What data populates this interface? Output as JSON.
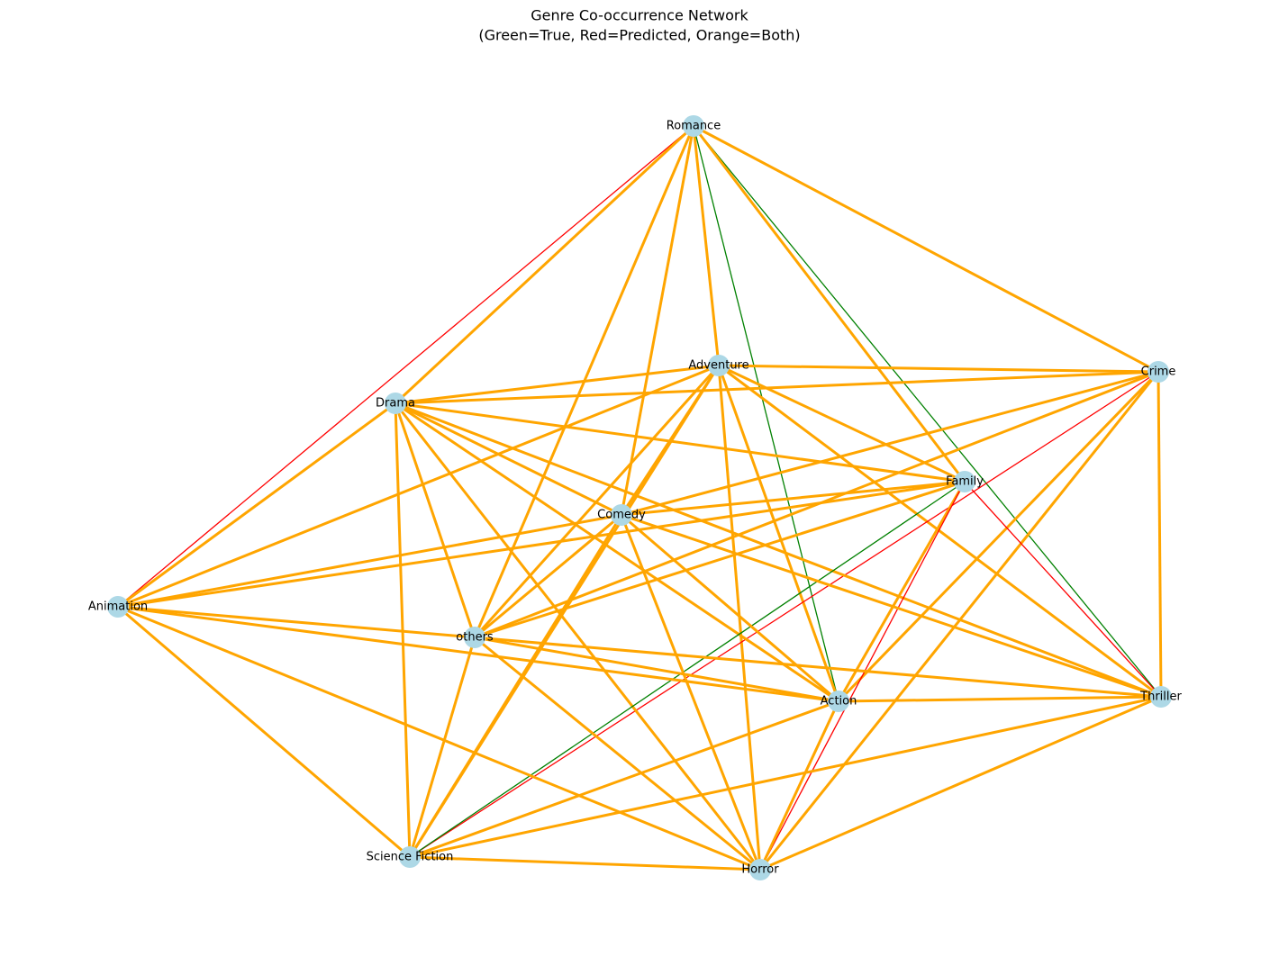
{
  "title": [
    "Genre Co-occurrence Network",
    "(Green=True, Red=Predicted, Orange=Both)"
  ],
  "edge_colors": {
    "true": "#008000",
    "predicted": "#ff0000",
    "both": "#ffa500"
  },
  "node_color": "#add8e6",
  "nodes": [
    {
      "label": "Romance"
    },
    {
      "label": "Adventure"
    },
    {
      "label": "Crime"
    },
    {
      "label": "Drama"
    },
    {
      "label": "Family"
    },
    {
      "label": "Comedy"
    },
    {
      "label": "Animation"
    },
    {
      "label": "others"
    },
    {
      "label": "Action"
    },
    {
      "label": "Thriller"
    },
    {
      "label": "Science Fiction"
    },
    {
      "label": "Horror"
    }
  ],
  "edges": [
    {
      "source": 0,
      "target": 6,
      "kind": "predicted"
    },
    {
      "source": 0,
      "target": 3,
      "kind": "both"
    },
    {
      "source": 0,
      "target": 7,
      "kind": "both"
    },
    {
      "source": 0,
      "target": 5,
      "kind": "both"
    },
    {
      "source": 0,
      "target": 1,
      "kind": "both"
    },
    {
      "source": 0,
      "target": 8,
      "kind": "true"
    },
    {
      "source": 0,
      "target": 9,
      "kind": "true"
    },
    {
      "source": 0,
      "target": 4,
      "kind": "both"
    },
    {
      "source": 0,
      "target": 2,
      "kind": "both"
    },
    {
      "source": 1,
      "target": 3,
      "kind": "both"
    },
    {
      "source": 1,
      "target": 2,
      "kind": "both"
    },
    {
      "source": 1,
      "target": 6,
      "kind": "both"
    },
    {
      "source": 1,
      "target": 5,
      "kind": "both"
    },
    {
      "source": 1,
      "target": 7,
      "kind": "both"
    },
    {
      "source": 1,
      "target": 8,
      "kind": "both"
    },
    {
      "source": 1,
      "target": 11,
      "kind": "both"
    },
    {
      "source": 1,
      "target": 4,
      "kind": "both"
    },
    {
      "source": 1,
      "target": 9,
      "kind": "both"
    },
    {
      "source": 1,
      "target": 10,
      "kind": "both"
    },
    {
      "source": 2,
      "target": 3,
      "kind": "both"
    },
    {
      "source": 2,
      "target": 5,
      "kind": "both"
    },
    {
      "source": 2,
      "target": 7,
      "kind": "both"
    },
    {
      "source": 2,
      "target": 10,
      "kind": "predicted"
    },
    {
      "source": 2,
      "target": 8,
      "kind": "both"
    },
    {
      "source": 2,
      "target": 11,
      "kind": "both"
    },
    {
      "source": 2,
      "target": 9,
      "kind": "both"
    },
    {
      "source": 3,
      "target": 4,
      "kind": "both"
    },
    {
      "source": 3,
      "target": 5,
      "kind": "both"
    },
    {
      "source": 3,
      "target": 9,
      "kind": "both"
    },
    {
      "source": 3,
      "target": 8,
      "kind": "both"
    },
    {
      "source": 3,
      "target": 11,
      "kind": "both"
    },
    {
      "source": 3,
      "target": 7,
      "kind": "both"
    },
    {
      "source": 3,
      "target": 10,
      "kind": "both"
    },
    {
      "source": 3,
      "target": 6,
      "kind": "both"
    },
    {
      "source": 4,
      "target": 5,
      "kind": "both"
    },
    {
      "source": 4,
      "target": 6,
      "kind": "both"
    },
    {
      "source": 4,
      "target": 7,
      "kind": "both"
    },
    {
      "source": 4,
      "target": 10,
      "kind": "true"
    },
    {
      "source": 4,
      "target": 8,
      "kind": "both"
    },
    {
      "source": 4,
      "target": 11,
      "kind": "predicted"
    },
    {
      "source": 4,
      "target": 9,
      "kind": "predicted"
    },
    {
      "source": 5,
      "target": 6,
      "kind": "both"
    },
    {
      "source": 5,
      "target": 7,
      "kind": "both"
    },
    {
      "source": 5,
      "target": 10,
      "kind": "both"
    },
    {
      "source": 5,
      "target": 8,
      "kind": "both"
    },
    {
      "source": 5,
      "target": 11,
      "kind": "both"
    },
    {
      "source": 5,
      "target": 9,
      "kind": "both"
    },
    {
      "source": 6,
      "target": 7,
      "kind": "both"
    },
    {
      "source": 6,
      "target": 8,
      "kind": "both"
    },
    {
      "source": 6,
      "target": 11,
      "kind": "both"
    },
    {
      "source": 6,
      "target": 10,
      "kind": "both"
    },
    {
      "source": 7,
      "target": 8,
      "kind": "both"
    },
    {
      "source": 7,
      "target": 9,
      "kind": "both"
    },
    {
      "source": 7,
      "target": 11,
      "kind": "both"
    },
    {
      "source": 7,
      "target": 10,
      "kind": "both"
    },
    {
      "source": 8,
      "target": 9,
      "kind": "both"
    },
    {
      "source": 8,
      "target": 10,
      "kind": "both"
    },
    {
      "source": 8,
      "target": 11,
      "kind": "both"
    },
    {
      "source": 9,
      "target": 10,
      "kind": "both"
    },
    {
      "source": 9,
      "target": 11,
      "kind": "both"
    },
    {
      "source": 10,
      "target": 11,
      "kind": "both"
    }
  ]
}
